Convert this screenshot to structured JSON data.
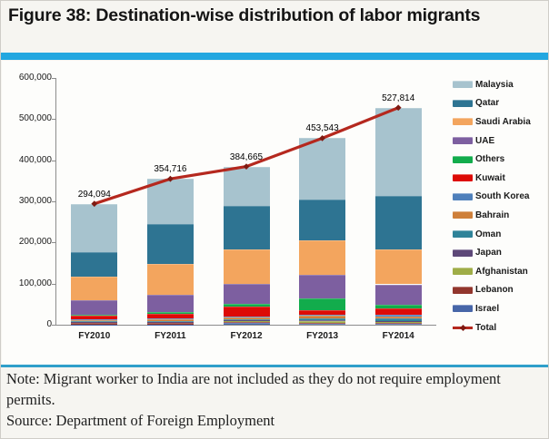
{
  "figure": {
    "title": "Figure 38: Destination-wise distribution of labor migrants",
    "note": "Note: Migrant worker to India are not included as they do not require employment permits.",
    "source": "Source: Department of Foreign Employment"
  },
  "colors": {
    "accent_blue": "#23a7e0",
    "note_rule_blue": "#2f9fca",
    "axis_gray": "#8c8c8c",
    "total_line_red": "#b5281e",
    "total_marker_red": "#7e1a12"
  },
  "chart_data": {
    "type": "bar",
    "variant": "stacked-bars-with-total-line",
    "title": "",
    "xlabel": "",
    "ylabel": "",
    "categories": [
      "FY2010",
      "FY2011",
      "FY2012",
      "FY2013",
      "FY2014"
    ],
    "series": [
      {
        "name": "Malaysia",
        "color": "#a7c3ce",
        "values": [
          116700,
          109300,
          96500,
          149800,
          215200
        ]
      },
      {
        "name": "Qatar",
        "color": "#2e7492",
        "values": [
          61400,
          96800,
          104800,
          98200,
          129200
        ]
      },
      {
        "name": "Saudi Arabia",
        "color": "#f3a55e",
        "values": [
          56800,
          76100,
          83000,
          85100,
          85200
        ]
      },
      {
        "name": "UAE",
        "color": "#7d5fa0",
        "values": [
          34100,
          42100,
          50100,
          55400,
          50100
        ]
      },
      {
        "name": "Others",
        "color": "#12ac4c",
        "values": [
          3500,
          3000,
          5300,
          29500,
          9000
        ]
      },
      {
        "name": "Kuwait",
        "color": "#dd0b06",
        "values": [
          8000,
          13000,
          24400,
          10400,
          15000
        ]
      },
      {
        "name": "South Korea",
        "color": "#4f80bb",
        "values": [
          1500,
          1500,
          2500,
          3500,
          3500
        ]
      },
      {
        "name": "Bahrain",
        "color": "#ce7f3a",
        "values": [
          3500,
          4000,
          4000,
          5500,
          5000
        ]
      },
      {
        "name": "Oman",
        "color": "#2f8399",
        "values": [
          2000,
          2500,
          3000,
          6000,
          6000
        ]
      },
      {
        "name": "Japan",
        "color": "#5d4878",
        "values": [
          600,
          700,
          1000,
          1500,
          1600
        ]
      },
      {
        "name": "Afghanistan",
        "color": "#9fad47",
        "values": [
          2000,
          2300,
          2600,
          3600,
          3000
        ]
      },
      {
        "name": "Lebanon",
        "color": "#92362d",
        "values": [
          3000,
          2500,
          3000,
          3000,
          2500
        ]
      },
      {
        "name": "Israel",
        "color": "#4766a8",
        "values": [
          994,
          916,
          4465,
          2043,
          2514
        ]
      }
    ],
    "total_series": {
      "name": "Total",
      "color": "#b5281e",
      "values": [
        294094,
        354716,
        384665,
        453543,
        527814
      ],
      "labels": [
        "294,094",
        "354,716",
        "384,665",
        "453,543",
        "527,814"
      ]
    },
    "ylim": [
      0,
      600000
    ],
    "ytick_step": 100000,
    "ytick_labels": [
      "0",
      "100,000",
      "200,000",
      "300,000",
      "400,000",
      "500,000",
      "600,000"
    ],
    "grid": false,
    "legend_position": "right",
    "stack_order": "bottom-to-top is reverse of legend order (Israel at bottom, Malaysia on top)"
  }
}
